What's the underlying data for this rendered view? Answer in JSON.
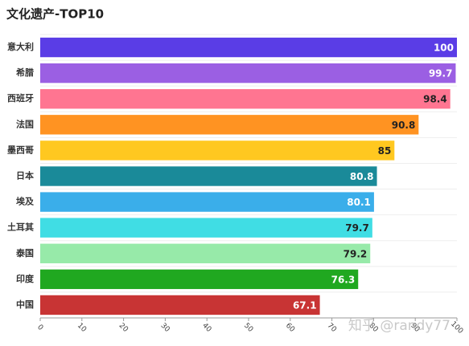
{
  "chart_data": {
    "type": "barh",
    "title": "文化遗产-TOP10",
    "categories": [
      "意大利",
      "希腊",
      "西班牙",
      "法国",
      "墨西哥",
      "日本",
      "埃及",
      "土耳其",
      "泰国",
      "印度",
      "中国"
    ],
    "values": [
      100,
      99.7,
      98.4,
      90.8,
      85,
      80.8,
      80.1,
      79.7,
      79.2,
      76.3,
      67.1
    ],
    "colors": [
      "#5a3de6",
      "#9b5fe3",
      "#ff7591",
      "#ff9322",
      "#ffc820",
      "#1a8a99",
      "#3aaeea",
      "#40dde4",
      "#97eaa9",
      "#20a820",
      "#c83434"
    ],
    "xlim": [
      0,
      100
    ],
    "xticks": [
      0,
      10,
      20,
      30,
      40,
      50,
      60,
      70,
      80,
      90,
      100
    ],
    "grid": true
  },
  "watermark": "知乎 @randy77"
}
